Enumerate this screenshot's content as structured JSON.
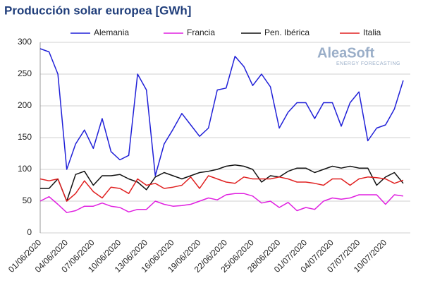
{
  "chart_data": {
    "type": "line",
    "title": "Producción solar europea [GWh]",
    "logo": "AleaSoft",
    "logo_subtitle": "ENERGY FORECASTING",
    "categories": [
      "01/06/2020",
      null,
      null,
      "04/06/2020",
      null,
      null,
      "07/06/2020",
      null,
      null,
      "10/06/2020",
      null,
      null,
      "13/06/2020",
      null,
      null,
      "16/06/2020",
      null,
      null,
      "19/06/2020",
      null,
      null,
      "22/06/2020",
      null,
      null,
      "25/06/2020",
      null,
      null,
      "28/06/2020",
      null,
      null,
      "01/07/2020",
      null,
      null,
      "04/07/2020",
      null,
      null,
      "07/07/2020",
      null,
      null,
      "10/07/2020",
      null,
      null
    ],
    "series": [
      {
        "name": "Alemania",
        "color": "#2020d8",
        "values": [
          290,
          285,
          250,
          100,
          140,
          162,
          133,
          180,
          128,
          115,
          122,
          250,
          225,
          90,
          140,
          163,
          188,
          170,
          152,
          165,
          225,
          228,
          278,
          262,
          232,
          250,
          230,
          165,
          190,
          205,
          205,
          180,
          205,
          205,
          168,
          205,
          222,
          145,
          165,
          170,
          195,
          240
        ]
      },
      {
        "name": "Francia",
        "color": "#e020e0",
        "values": [
          50,
          57,
          45,
          32,
          35,
          42,
          42,
          47,
          42,
          40,
          33,
          37,
          37,
          50,
          45,
          42,
          43,
          45,
          50,
          55,
          52,
          60,
          62,
          62,
          58,
          47,
          50,
          40,
          48,
          35,
          40,
          37,
          50,
          55,
          53,
          55,
          60,
          60,
          60,
          45,
          60,
          58
        ]
      },
      {
        "name": "Pen. Ibérica",
        "color": "#111111",
        "values": [
          70,
          70,
          85,
          50,
          92,
          97,
          75,
          90,
          90,
          92,
          85,
          80,
          68,
          88,
          95,
          90,
          85,
          90,
          95,
          97,
          100,
          105,
          107,
          105,
          100,
          80,
          90,
          88,
          97,
          102,
          102,
          95,
          100,
          105,
          102,
          105,
          102,
          102,
          75,
          88,
          95,
          78
        ]
      },
      {
        "name": "Italia",
        "color": "#e02020",
        "values": [
          85,
          82,
          85,
          50,
          62,
          82,
          65,
          55,
          72,
          70,
          62,
          85,
          75,
          78,
          70,
          72,
          75,
          88,
          70,
          90,
          85,
          80,
          78,
          88,
          85,
          85,
          85,
          88,
          85,
          80,
          80,
          78,
          75,
          85,
          85,
          75,
          85,
          88,
          87,
          85,
          78,
          83
        ]
      }
    ],
    "ylim": [
      0,
      300
    ],
    "yticks": [
      0,
      50,
      100,
      150,
      200,
      250,
      300
    ],
    "grid": true,
    "legend": "top"
  }
}
